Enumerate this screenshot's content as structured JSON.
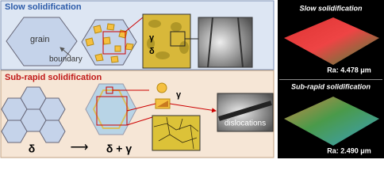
{
  "slow": {
    "title": "Slow solidification",
    "grain": "grain",
    "boundary": "boundary",
    "gamma": "γ",
    "delta": "δ"
  },
  "subrapid": {
    "title": "Sub-rapid solidification",
    "start": "δ",
    "arrow": "⟶",
    "end": "δ + γ",
    "gamma": "γ",
    "dislocations": "dislocations"
  },
  "surfaces": [
    {
      "title": "Slow solidification",
      "ra": "Ra: 4.478 μm"
    },
    {
      "title": "Sub-rapid solidification",
      "ra": "Ra: 2.490 μm"
    }
  ]
}
